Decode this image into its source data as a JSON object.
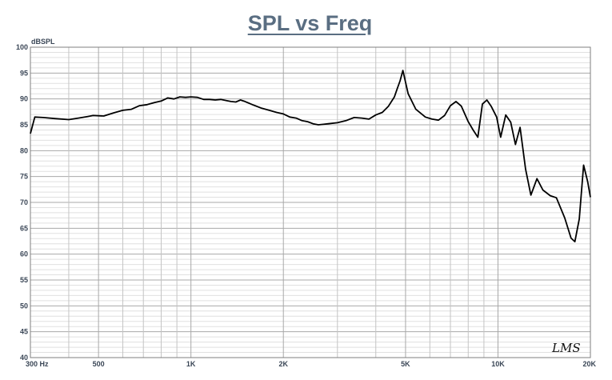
{
  "chart_data": {
    "type": "line",
    "title": "SPL vs Freq",
    "ylabel": "dBSPL",
    "xlabel": "",
    "xscale": "log",
    "xlim": [
      300,
      20000
    ],
    "ylim": [
      40,
      100
    ],
    "y_ticks": [
      40,
      45,
      50,
      55,
      60,
      65,
      70,
      75,
      80,
      85,
      90,
      95,
      100
    ],
    "x_ticks": [
      {
        "value": 300,
        "label": "300  Hz"
      },
      {
        "value": 500,
        "label": "500"
      },
      {
        "value": 1000,
        "label": "1K"
      },
      {
        "value": 2000,
        "label": "2K"
      },
      {
        "value": 5000,
        "label": "5K"
      },
      {
        "value": 10000,
        "label": "10K"
      },
      {
        "value": 20000,
        "label": "20K"
      }
    ],
    "grid": true,
    "logo": "LMS",
    "series": [
      {
        "color": "#000000",
        "x": [
          300,
          310,
          330,
          360,
          400,
          430,
          460,
          480,
          520,
          560,
          600,
          640,
          680,
          720,
          760,
          800,
          840,
          880,
          920,
          960,
          1000,
          1050,
          1100,
          1150,
          1200,
          1250,
          1300,
          1350,
          1400,
          1450,
          1500,
          1600,
          1700,
          1800,
          1900,
          2000,
          2100,
          2200,
          2300,
          2400,
          2500,
          2600,
          2700,
          2800,
          3000,
          3200,
          3400,
          3600,
          3800,
          4000,
          4200,
          4400,
          4600,
          4700,
          4800,
          4900,
          5100,
          5400,
          5800,
          6100,
          6400,
          6700,
          7000,
          7300,
          7600,
          8000,
          8300,
          8600,
          8900,
          9200,
          9500,
          9900,
          10200,
          10600,
          11000,
          11400,
          11800,
          12300,
          12800,
          13400,
          14000,
          14800,
          15500,
          16500,
          17300,
          17800,
          18400,
          19000,
          19600,
          20000
        ],
        "y": [
          83.3,
          86.5,
          86.4,
          86.2,
          86.0,
          86.3,
          86.6,
          86.8,
          86.7,
          87.3,
          87.8,
          88.0,
          88.7,
          88.9,
          89.3,
          89.6,
          90.2,
          90.0,
          90.4,
          90.3,
          90.4,
          90.3,
          89.9,
          89.9,
          89.8,
          89.9,
          89.7,
          89.5,
          89.4,
          89.8,
          89.5,
          88.8,
          88.2,
          87.8,
          87.4,
          87.1,
          86.5,
          86.3,
          85.8,
          85.6,
          85.2,
          85.0,
          85.1,
          85.2,
          85.4,
          85.8,
          86.4,
          86.3,
          86.1,
          86.9,
          87.4,
          88.6,
          90.4,
          92.0,
          93.5,
          95.5,
          91.0,
          88.0,
          86.5,
          86.1,
          85.9,
          86.8,
          88.7,
          89.5,
          88.6,
          85.6,
          84.0,
          82.6,
          89.0,
          89.8,
          88.6,
          86.5,
          82.6,
          86.9,
          85.5,
          81.2,
          84.5,
          76.4,
          71.4,
          74.6,
          72.4,
          71.3,
          70.9,
          67.0,
          63.1,
          62.4,
          66.8,
          77.2,
          74.0,
          71.0
        ]
      }
    ]
  }
}
